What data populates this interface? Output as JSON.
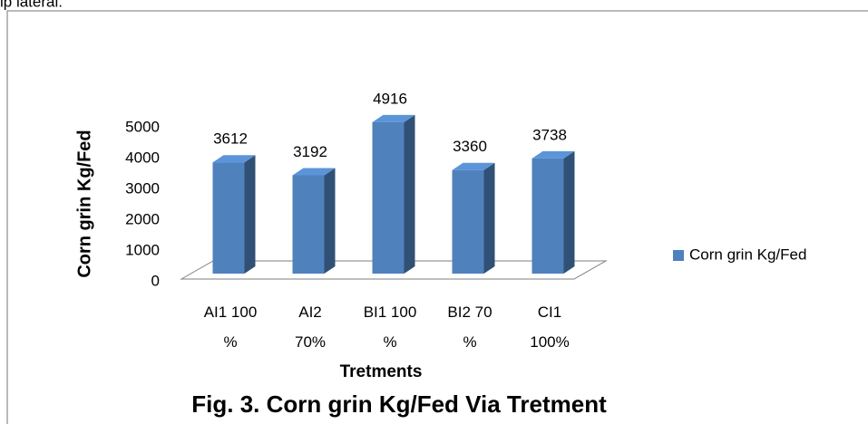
{
  "preceding_text": "ip lateral.",
  "chart_data": {
    "type": "bar3d",
    "title": "Fig. 3. Corn grin Kg/Fed Via Tretment",
    "x_label": "Tretments",
    "y_label": "Corn grin Kg/Fed",
    "categories": [
      "AI1 100 %",
      "AI2 70%",
      "BI1 100 %",
      "BI2 70 %",
      "CI1 100%"
    ],
    "series": [
      {
        "name": "Corn grin Kg/Fed",
        "color": "#4f81bd",
        "values": [
          3612,
          3192,
          4916,
          3360,
          3738
        ]
      }
    ],
    "ylim": [
      0,
      5000
    ],
    "yticks": [
      0,
      1000,
      2000,
      3000,
      4000,
      5000
    ],
    "legend": "right",
    "data_labels": true
  }
}
